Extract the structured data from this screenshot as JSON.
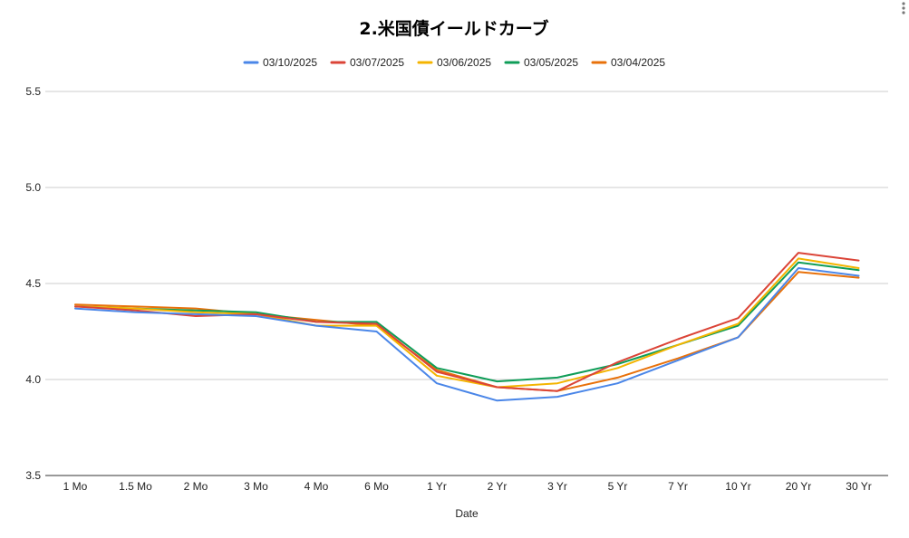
{
  "chart_data": {
    "type": "line",
    "title": "2.米国債イールドカーブ",
    "xlabel": "Date",
    "ylabel": "",
    "ylim": [
      3.5,
      5.5
    ],
    "yticks": [
      "3.5",
      "4.0",
      "4.5",
      "5.0",
      "5.5"
    ],
    "grid": true,
    "legend_position": "top",
    "categories": [
      "1 Mo",
      "1.5 Mo",
      "2 Mo",
      "3 Mo",
      "4 Mo",
      "6 Mo",
      "1 Yr",
      "2 Yr",
      "3 Yr",
      "5 Yr",
      "7 Yr",
      "10 Yr",
      "20 Yr",
      "30 Yr"
    ],
    "series": [
      {
        "name": "03/10/2025",
        "color": "#4a86e8",
        "values": [
          4.37,
          4.35,
          4.34,
          4.33,
          4.28,
          4.25,
          3.98,
          3.89,
          3.91,
          3.98,
          4.1,
          4.22,
          4.58,
          4.54
        ]
      },
      {
        "name": "03/07/2025",
        "color": "#db4437",
        "values": [
          4.38,
          4.36,
          4.33,
          4.34,
          4.3,
          4.29,
          4.04,
          3.96,
          3.94,
          4.09,
          4.21,
          4.32,
          4.66,
          4.62
        ]
      },
      {
        "name": "03/06/2025",
        "color": "#f4b400",
        "values": [
          4.38,
          4.37,
          4.35,
          4.34,
          4.28,
          4.28,
          4.02,
          3.96,
          3.98,
          4.06,
          4.18,
          4.29,
          4.63,
          4.58
        ]
      },
      {
        "name": "03/05/2025",
        "color": "#0f9d58",
        "values": [
          4.38,
          4.37,
          4.36,
          4.35,
          4.3,
          4.3,
          4.06,
          3.99,
          4.01,
          4.08,
          4.18,
          4.28,
          4.61,
          4.57
        ]
      },
      {
        "name": "03/04/2025",
        "color": "#e8710a",
        "values": [
          4.39,
          4.38,
          4.37,
          4.34,
          4.31,
          4.28,
          4.05,
          3.96,
          3.94,
          4.01,
          4.11,
          4.22,
          4.56,
          4.53
        ]
      }
    ]
  }
}
